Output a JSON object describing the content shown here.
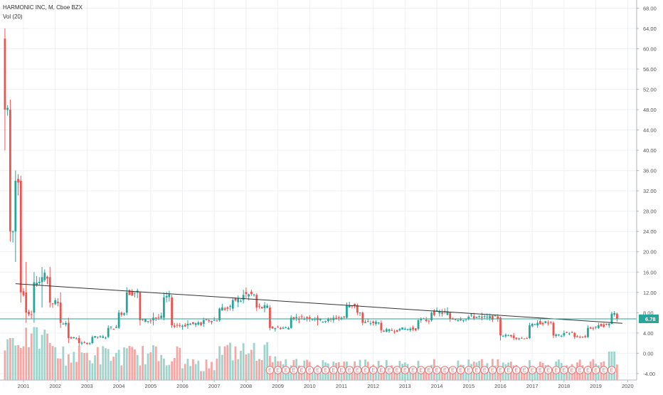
{
  "legend": {
    "symbol_line": "HARMONIC INC, M, Cboe BZX",
    "volume_line": "Vol (20)"
  },
  "price_badge": {
    "value": "6.78"
  },
  "colors": {
    "up": "#26a69a",
    "down": "#ef5350",
    "vol_up": "#9fd4cc",
    "vol_down": "#f4a7a5",
    "price_line": "#26a69a",
    "trendline": "#333333",
    "earnings_marker": "#e57373"
  },
  "chart_data": {
    "type": "candlestick",
    "title": "HARMONIC INC, M, Cboe BZX",
    "indicator": "Vol (20)",
    "x_tick_labels": [
      "2001",
      "2002",
      "2003",
      "2004",
      "2005",
      "2006",
      "2007",
      "2008",
      "2009",
      "2010",
      "2011",
      "2012",
      "2013",
      "2014",
      "2015",
      "2016",
      "2017",
      "2018",
      "2019",
      "2020"
    ],
    "y_tick_labels": [
      "68.00",
      "64.00",
      "60.00",
      "56.00",
      "52.00",
      "48.00",
      "44.00",
      "40.00",
      "36.00",
      "32.00",
      "28.00",
      "24.00",
      "20.00",
      "16.00",
      "12.00",
      "8.00",
      "4.00",
      "0.00",
      "-4.00"
    ],
    "y_range": [
      -4,
      68
    ],
    "last_price": 6.78,
    "trendline": {
      "start": [
        "2000-10",
        13.7
      ],
      "end": [
        "2019-11",
        5.9
      ]
    },
    "earnings_marker_label": "E",
    "earnings_markers": [
      "2008-10",
      "2009-01",
      "2009-04",
      "2009-07",
      "2009-10",
      "2010-01",
      "2010-04",
      "2010-07",
      "2010-10",
      "2011-01",
      "2011-04",
      "2011-07",
      "2011-10",
      "2012-01",
      "2012-04",
      "2012-07",
      "2012-10",
      "2013-01",
      "2013-04",
      "2013-07",
      "2013-10",
      "2014-01",
      "2014-04",
      "2014-07",
      "2014-10",
      "2015-01",
      "2015-04",
      "2015-07",
      "2015-10",
      "2016-01",
      "2016-04",
      "2016-07",
      "2016-10",
      "2017-01",
      "2017-04",
      "2017-07",
      "2017-10",
      "2018-01",
      "2018-04",
      "2018-07",
      "2018-10",
      "2019-01",
      "2019-04",
      "2019-07"
    ],
    "ohlc_anchors": [
      [
        "2000-06",
        62,
        64,
        40,
        48
      ],
      [
        "2000-08",
        48,
        50,
        22,
        24
      ],
      [
        "2000-10",
        24,
        36,
        18,
        34
      ],
      [
        "2000-12",
        34,
        35,
        10,
        12
      ],
      [
        "2001-02",
        12,
        18,
        6,
        8
      ],
      [
        "2001-05",
        8,
        16,
        6,
        14
      ],
      [
        "2001-08",
        14,
        17,
        9,
        15
      ],
      [
        "2001-11",
        15,
        17,
        9,
        10
      ],
      [
        "2002-03",
        10,
        12,
        5,
        6
      ],
      [
        "2002-06",
        6,
        7,
        2,
        3
      ],
      [
        "2002-10",
        3,
        3.5,
        1.4,
        2
      ],
      [
        "2003-03",
        2,
        3.5,
        1.8,
        3.2
      ],
      [
        "2003-09",
        3.2,
        5.5,
        3,
        5
      ],
      [
        "2004-01",
        5,
        8.5,
        4.8,
        8
      ],
      [
        "2004-04",
        8,
        13,
        7.5,
        12
      ],
      [
        "2004-09",
        12,
        12,
        5.5,
        6.5
      ],
      [
        "2005-02",
        6.5,
        8,
        5.5,
        7
      ],
      [
        "2005-06",
        7,
        12,
        6.5,
        11
      ],
      [
        "2005-09",
        11,
        11.5,
        5,
        5.5
      ],
      [
        "2006-03",
        5.5,
        6.5,
        4.8,
        5.8
      ],
      [
        "2006-09",
        5.8,
        7,
        5.2,
        6.5
      ],
      [
        "2007-03",
        6.5,
        9,
        6.2,
        8.8
      ],
      [
        "2007-08",
        8.8,
        11,
        8.3,
        10.5
      ],
      [
        "2007-12",
        10.5,
        12.5,
        9.8,
        11.5
      ],
      [
        "2008-05",
        11.5,
        11.8,
        8.3,
        9
      ],
      [
        "2008-10",
        9,
        9.5,
        4.5,
        5
      ],
      [
        "2009-06",
        5,
        7.5,
        4.8,
        7
      ],
      [
        "2010-04",
        7,
        7.5,
        5.5,
        6.5
      ],
      [
        "2010-10",
        6.5,
        7.5,
        6,
        7
      ],
      [
        "2011-03",
        7,
        10,
        6.8,
        9.5
      ],
      [
        "2011-07",
        9.5,
        9.8,
        7.5,
        8
      ],
      [
        "2011-09",
        8,
        8.2,
        5.5,
        6
      ],
      [
        "2012-04",
        6,
        6.5,
        4,
        4.5
      ],
      [
        "2012-11",
        4.5,
        5,
        4.3,
        4.8
      ],
      [
        "2013-06",
        4.8,
        6.8,
        4.5,
        6.5
      ],
      [
        "2013-11",
        6.5,
        8.2,
        6.2,
        8
      ],
      [
        "2014-06",
        8,
        8,
        6.2,
        6.8
      ],
      [
        "2015-01",
        6.8,
        7.5,
        6.5,
        7.2
      ],
      [
        "2015-06",
        7.2,
        8,
        6.5,
        7
      ],
      [
        "2016-01",
        7,
        7.2,
        2.5,
        3.5
      ],
      [
        "2016-06",
        3.5,
        4,
        2.6,
        3
      ],
      [
        "2016-12",
        3,
        6,
        2.8,
        5.5
      ],
      [
        "2017-03",
        5.5,
        6.5,
        5,
        6
      ],
      [
        "2017-09",
        6,
        6.3,
        3,
        3.5
      ],
      [
        "2018-01",
        3.5,
        4.5,
        3.2,
        4
      ],
      [
        "2018-05",
        4,
        4.2,
        2.8,
        3.2
      ],
      [
        "2018-10",
        3.2,
        5.5,
        3,
        5
      ],
      [
        "2019-02",
        5,
        6,
        4.8,
        5.5
      ],
      [
        "2019-06",
        5.5,
        6,
        5,
        5.8
      ],
      [
        "2019-07",
        5.8,
        8.2,
        5.7,
        7.8
      ],
      [
        "2019-09",
        7.8,
        8,
        6.2,
        6.78
      ]
    ],
    "volume_notes": "Volume bars (red/green) rise from the bottom of the price pane; heights are relative, largest in 2000-2001 and late 2007-2008, with a tall green spike in mid-2019."
  }
}
